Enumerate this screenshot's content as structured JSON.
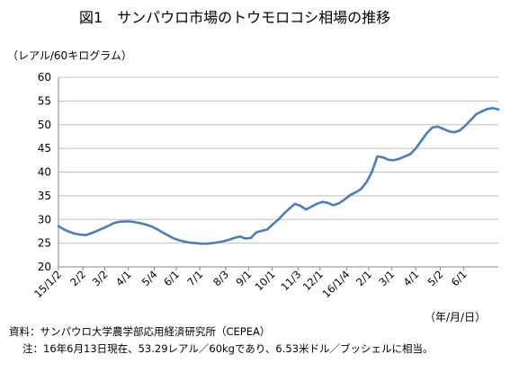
{
  "figure": {
    "title": "図1　サンパウロ市場のトウモロコシ相場の推移",
    "y_unit": "（レアル/60キログラム）",
    "x_unit": "（年/月/日）",
    "source": "資料：サンパウロ大学農学部応用経済研究所（CEPEA）",
    "note": "注：16年6月13日現在、53.29レアル／60kgであり、6.53米ドル／ブッシェルに相当。"
  },
  "chart_data": {
    "type": "line",
    "title": "図1　サンパウロ市場のトウモロコシ相場の推移",
    "ylabel": "（レアル/60キログラム）",
    "xlabel": "（年/月/日）",
    "ylim": [
      20,
      60
    ],
    "yticks": [
      20,
      25,
      30,
      35,
      40,
      45,
      50,
      55,
      60
    ],
    "grid": true,
    "legend": "none",
    "line_color": "#4a7ebb",
    "xticks": [
      {
        "label": "15/1/2",
        "date": "2015-01-02"
      },
      {
        "label": "2/2",
        "date": "2015-02-02"
      },
      {
        "label": "3/2",
        "date": "2015-03-02"
      },
      {
        "label": "4/1",
        "date": "2015-04-01"
      },
      {
        "label": "5/4",
        "date": "2015-05-04"
      },
      {
        "label": "6/1",
        "date": "2015-06-01"
      },
      {
        "label": "7/1",
        "date": "2015-07-01"
      },
      {
        "label": "8/3",
        "date": "2015-08-03"
      },
      {
        "label": "9/1",
        "date": "2015-09-01"
      },
      {
        "label": "10/1",
        "date": "2015-10-01"
      },
      {
        "label": "11/3",
        "date": "2015-11-03"
      },
      {
        "label": "12/1",
        "date": "2015-12-01"
      },
      {
        "label": "16/1/4",
        "date": "2016-01-04"
      },
      {
        "label": "2/1",
        "date": "2016-02-01"
      },
      {
        "label": "3/1",
        "date": "2016-03-01"
      },
      {
        "label": "4/1",
        "date": "2016-04-01"
      },
      {
        "label": "5/2",
        "date": "2016-05-02"
      },
      {
        "label": "6/1",
        "date": "2016-06-01"
      }
    ],
    "series": [
      {
        "points": [
          [
            "2015-01-02",
            28.6
          ],
          [
            "2015-01-09",
            27.9
          ],
          [
            "2015-01-16",
            27.4
          ],
          [
            "2015-01-23",
            27.0
          ],
          [
            "2015-01-30",
            26.8
          ],
          [
            "2015-02-06",
            26.7
          ],
          [
            "2015-02-13",
            27.1
          ],
          [
            "2015-02-20",
            27.6
          ],
          [
            "2015-02-27",
            28.1
          ],
          [
            "2015-03-06",
            28.6
          ],
          [
            "2015-03-13",
            29.2
          ],
          [
            "2015-03-20",
            29.5
          ],
          [
            "2015-03-27",
            29.6
          ],
          [
            "2015-04-03",
            29.6
          ],
          [
            "2015-04-10",
            29.4
          ],
          [
            "2015-04-17",
            29.2
          ],
          [
            "2015-04-24",
            28.9
          ],
          [
            "2015-05-01",
            28.5
          ],
          [
            "2015-05-08",
            27.9
          ],
          [
            "2015-05-15",
            27.2
          ],
          [
            "2015-05-22",
            26.6
          ],
          [
            "2015-05-29",
            26.0
          ],
          [
            "2015-06-05",
            25.6
          ],
          [
            "2015-06-12",
            25.3
          ],
          [
            "2015-06-19",
            25.1
          ],
          [
            "2015-06-26",
            25.0
          ],
          [
            "2015-07-03",
            24.9
          ],
          [
            "2015-07-10",
            24.9
          ],
          [
            "2015-07-17",
            25.0
          ],
          [
            "2015-07-24",
            25.2
          ],
          [
            "2015-07-31",
            25.4
          ],
          [
            "2015-08-07",
            25.7
          ],
          [
            "2015-08-14",
            26.1
          ],
          [
            "2015-08-21",
            26.4
          ],
          [
            "2015-08-28",
            26.0
          ],
          [
            "2015-09-04",
            26.1
          ],
          [
            "2015-09-11",
            27.3
          ],
          [
            "2015-09-18",
            27.6
          ],
          [
            "2015-09-25",
            27.9
          ],
          [
            "2015-10-02",
            29.0
          ],
          [
            "2015-10-09",
            30.0
          ],
          [
            "2015-10-16",
            31.2
          ],
          [
            "2015-10-23",
            32.3
          ],
          [
            "2015-10-30",
            33.3
          ],
          [
            "2015-11-06",
            32.9
          ],
          [
            "2015-11-13",
            32.1
          ],
          [
            "2015-11-20",
            32.7
          ],
          [
            "2015-11-27",
            33.3
          ],
          [
            "2015-12-04",
            33.7
          ],
          [
            "2015-12-11",
            33.5
          ],
          [
            "2015-12-18",
            33.0
          ],
          [
            "2015-12-25",
            33.4
          ],
          [
            "2016-01-01",
            34.2
          ],
          [
            "2016-01-08",
            35.1
          ],
          [
            "2016-01-15",
            35.7
          ],
          [
            "2016-01-22",
            36.4
          ],
          [
            "2016-01-29",
            37.8
          ],
          [
            "2016-02-05",
            40.0
          ],
          [
            "2016-02-12",
            43.3
          ],
          [
            "2016-02-19",
            43.1
          ],
          [
            "2016-02-26",
            42.6
          ],
          [
            "2016-03-04",
            42.5
          ],
          [
            "2016-03-11",
            42.8
          ],
          [
            "2016-03-18",
            43.3
          ],
          [
            "2016-03-25",
            43.8
          ],
          [
            "2016-04-01",
            45.0
          ],
          [
            "2016-04-08",
            46.6
          ],
          [
            "2016-04-15",
            48.2
          ],
          [
            "2016-04-22",
            49.4
          ],
          [
            "2016-04-29",
            49.6
          ],
          [
            "2016-05-06",
            49.1
          ],
          [
            "2016-05-13",
            48.6
          ],
          [
            "2016-05-20",
            48.4
          ],
          [
            "2016-05-27",
            48.8
          ],
          [
            "2016-06-03",
            49.8
          ],
          [
            "2016-06-10",
            51.0
          ],
          [
            "2016-06-17",
            52.2
          ],
          [
            "2016-06-24",
            52.8
          ],
          [
            "2016-07-01",
            53.3
          ],
          [
            "2016-07-08",
            53.5
          ],
          [
            "2016-07-15",
            53.2
          ]
        ]
      }
    ]
  }
}
